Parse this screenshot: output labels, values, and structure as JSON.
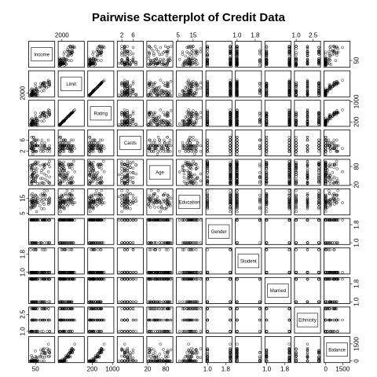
{
  "chart_data": {
    "type": "scatter",
    "subtype": "scatterplot-matrix",
    "title": "Pairwise Scatterplot of Credit Data",
    "variables": [
      "Income",
      "Limit",
      "Rating",
      "Cards",
      "Age",
      "Education",
      "Gender",
      "Student",
      "Married",
      "Ethnicity",
      "Balance"
    ],
    "ranges": {
      "Income": [
        10,
        187
      ],
      "Limit": [
        855,
        13913
      ],
      "Rating": [
        93,
        982
      ],
      "Cards": [
        1,
        9
      ],
      "Age": [
        23,
        98
      ],
      "Education": [
        5,
        20
      ],
      "Gender": [
        1,
        2
      ],
      "Student": [
        1,
        2
      ],
      "Married": [
        1,
        2
      ],
      "Ethnicity": [
        1,
        3
      ],
      "Balance": [
        0,
        1999
      ]
    },
    "categorical": [
      "Gender",
      "Student",
      "Married",
      "Ethnicity"
    ],
    "tick_labels": {
      "Income": [
        "50"
      ],
      "Limit": [
        "2000"
      ],
      "Rating": [
        "200",
        "1000"
      ],
      "Cards": [
        "2",
        "6"
      ],
      "Age": [
        "20",
        "80"
      ],
      "Education": [
        "5",
        "15"
      ],
      "Gender": [
        "1.0",
        "1.8"
      ],
      "Student": [
        "1.0",
        "1.8"
      ],
      "Married": [
        "1.0",
        "1.8"
      ],
      "Ethnicity": [
        "1.0",
        "2.5"
      ],
      "Balance": [
        "0",
        "1500"
      ]
    },
    "tick_values": {
      "Income": [
        50
      ],
      "Limit": [
        2000
      ],
      "Rating": [
        200,
        1000
      ],
      "Cards": [
        2,
        6
      ],
      "Age": [
        20,
        80
      ],
      "Education": [
        5,
        15
      ],
      "Gender": [
        1.0,
        1.8
      ],
      "Student": [
        1.0,
        1.8
      ],
      "Married": [
        1.0,
        1.8
      ],
      "Ethnicity": [
        1.0,
        2.5
      ],
      "Balance": [
        0,
        1500
      ]
    },
    "tick_labels_extra": {
      "Income": [
        "50"
      ],
      "Limit": [
        "2000"
      ],
      "Rating": [
        "200"
      ],
      "Cards": [
        "2",
        "6"
      ],
      "Age": [
        "20",
        "80"
      ],
      "Education": [
        "5",
        "15"
      ],
      "Gender": [
        "1.0",
        "1.8"
      ],
      "Student": [
        "1.0",
        "1.8"
      ],
      "Married": [
        "1.0",
        "1.8"
      ],
      "Ethnicity": [
        "1.0",
        "2.5"
      ],
      "Balance": [
        "0",
        "1500"
      ]
    },
    "grid": false,
    "marker": "open-circle"
  }
}
